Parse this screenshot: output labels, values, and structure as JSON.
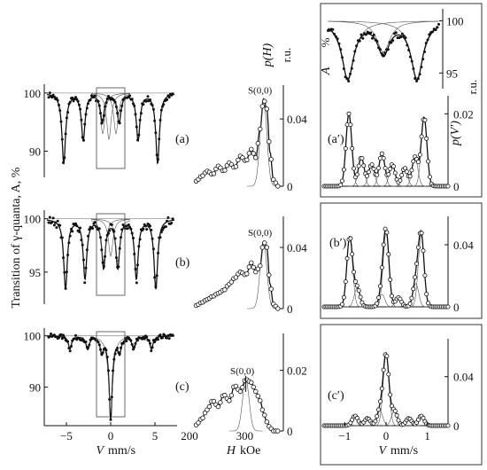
{
  "labels": {
    "y_left": "Transition of γ-quanta, A, %",
    "x_spectra_unit": "mm/s",
    "x_spectra_var": "V",
    "x_field_var": "H",
    "x_field_unit": "kOe",
    "y_field_var": "p(H)",
    "y_field_unit": "r.u.",
    "y_inset_top_var": "A",
    "y_inset_top_unit": "%",
    "y_inset_bottom_var": "p(V′)",
    "y_inset_bottom_unit": "r.u.",
    "s00": "S(0,0)"
  },
  "chart_data": [
    {
      "id": "a",
      "panel_label": "(a)",
      "type": "scatter",
      "xlabel": "V, mm/s",
      "ylabel": "A, %",
      "xlim": [
        -7.5,
        7.5
      ],
      "ylim": [
        85.5,
        101.5
      ],
      "yticks": [
        "90",
        "100"
      ],
      "baseline": 100,
      "peaks": [
        {
          "v": -5.3,
          "depth": 12
        },
        {
          "v": -3.1,
          "depth": 8
        },
        {
          "v": -0.95,
          "depth": 5
        },
        {
          "v": 0.95,
          "depth": 5
        },
        {
          "v": 3.1,
          "depth": 8
        },
        {
          "v": 5.3,
          "depth": 12
        }
      ],
      "components": [
        {
          "v": -0.9,
          "depth": 7
        },
        {
          "v": -0.2,
          "depth": 8
        },
        {
          "v": 0.6,
          "depth": 7
        }
      ],
      "selection_window": [
        -1.6,
        1.6
      ]
    },
    {
      "id": "b",
      "panel_label": "(b)",
      "type": "scatter",
      "xlabel": "V, mm/s",
      "ylabel": "A, %",
      "xlim": [
        -7.5,
        7.5
      ],
      "ylim": [
        92,
        100.8
      ],
      "yticks": [
        "95",
        "100"
      ],
      "baseline": 100,
      "peaks": [
        {
          "v": -5.1,
          "depth": 6.5
        },
        {
          "v": -2.9,
          "depth": 5.5
        },
        {
          "v": -0.8,
          "depth": 4.5
        },
        {
          "v": 0.8,
          "depth": 4.5
        },
        {
          "v": 2.9,
          "depth": 5.5
        },
        {
          "v": 5.1,
          "depth": 6.5
        }
      ],
      "components": [
        {
          "v": -0.8,
          "depth": 4
        },
        {
          "v": 0.0,
          "depth": 3.5
        },
        {
          "v": 0.8,
          "depth": 4
        }
      ],
      "selection_window": [
        -1.6,
        1.6
      ]
    },
    {
      "id": "c",
      "panel_label": "(c)",
      "type": "scatter",
      "xlabel": "V, mm/s",
      "ylabel": "A, %",
      "xlim": [
        -7.5,
        7.5
      ],
      "ylim": [
        82.5,
        101.5
      ],
      "xticks": [
        "−5",
        "0",
        "5"
      ],
      "yticks": [
        "90",
        "100"
      ],
      "baseline": 100,
      "peaks": [
        {
          "v": -4.6,
          "depth": 2.5
        },
        {
          "v": -2.6,
          "depth": 2.5
        },
        {
          "v": -1.0,
          "depth": 3
        },
        {
          "v": 0.0,
          "depth": 16
        },
        {
          "v": 1.0,
          "depth": 3
        },
        {
          "v": 2.6,
          "depth": 2.5
        },
        {
          "v": 4.6,
          "depth": 2.5
        }
      ],
      "components": [
        {
          "v": 0.0,
          "depth": 15
        }
      ],
      "selection_window": [
        -1.6,
        1.6
      ]
    },
    {
      "id": "a_H",
      "type": "line",
      "xlabel": "H, kOe",
      "ylabel": "p(H), r.u.",
      "xlim": [
        200,
        370
      ],
      "ylim": [
        0,
        0.058
      ],
      "yticks": [
        "0",
        "0.04"
      ],
      "annotation": "S(0,0)",
      "H": [
        212,
        222,
        232,
        242,
        252,
        262,
        272,
        282,
        292,
        302,
        312,
        320,
        328,
        334,
        340,
        346,
        352,
        360
      ],
      "p": [
        0.003,
        0.006,
        0.009,
        0.007,
        0.012,
        0.009,
        0.014,
        0.011,
        0.018,
        0.015,
        0.022,
        0.017,
        0.034,
        0.052,
        0.046,
        0.02,
        0.004,
        0.0
      ]
    },
    {
      "id": "b_H",
      "type": "line",
      "xlabel": "H, kOe",
      "ylabel": "p(H), r.u.",
      "xlim": [
        200,
        370
      ],
      "ylim": [
        0,
        0.058
      ],
      "yticks": [
        "0",
        "0.04"
      ],
      "annotation": "S(0,0)",
      "H": [
        212,
        222,
        232,
        242,
        252,
        262,
        272,
        282,
        292,
        302,
        312,
        320,
        328,
        334,
        340,
        346,
        352,
        360
      ],
      "p": [
        0.002,
        0.004,
        0.006,
        0.008,
        0.01,
        0.012,
        0.016,
        0.02,
        0.024,
        0.022,
        0.03,
        0.024,
        0.028,
        0.044,
        0.04,
        0.016,
        0.003,
        0.0
      ]
    },
    {
      "id": "c_H",
      "type": "line",
      "xlabel": "H, kOe",
      "ylabel": "p(H), r.u.",
      "xlim": [
        200,
        370
      ],
      "ylim": [
        0,
        0.031
      ],
      "xticks": [
        "200",
        "300"
      ],
      "yticks": [
        "0",
        "0.02"
      ],
      "annotation": "S(0,0)",
      "H": [
        212,
        222,
        232,
        242,
        252,
        262,
        272,
        282,
        292,
        302,
        312,
        320,
        328,
        334,
        340,
        346,
        352,
        360
      ],
      "p": [
        0.002,
        0.004,
        0.007,
        0.01,
        0.008,
        0.012,
        0.01,
        0.015,
        0.013,
        0.017,
        0.016,
        0.013,
        0.01,
        0.006,
        0.003,
        0.001,
        0.0,
        0.0
      ]
    },
    {
      "id": "a_inset",
      "panel_label": "(a′)",
      "type": "scatter",
      "xlabel": "V, mm/s",
      "ylabel": "A, %",
      "xlim": [
        -1.5,
        1.5
      ],
      "ylim": [
        93.5,
        100.8
      ],
      "yticks": [
        "95",
        "100"
      ],
      "baseline": 100,
      "peaks": [
        {
          "v": -0.9,
          "depth": 5.5
        },
        {
          "v": 0.0,
          "depth": 3
        },
        {
          "v": 0.85,
          "depth": 5.5
        }
      ]
    },
    {
      "id": "a_prime",
      "type": "line",
      "xlabel": "V, mm/s",
      "ylabel": "p(V′), r.u.",
      "xlim": [
        -1.5,
        1.5
      ],
      "ylim": [
        0,
        0.024
      ],
      "yticks": [
        "0",
        "0.02"
      ],
      "components": [
        {
          "v": -0.9,
          "h": 0.02
        },
        {
          "v": -0.6,
          "h": 0.008
        },
        {
          "v": -0.35,
          "h": 0.006
        },
        {
          "v": -0.1,
          "h": 0.009
        },
        {
          "v": 0.15,
          "h": 0.006
        },
        {
          "v": 0.45,
          "h": 0.005
        },
        {
          "v": 0.7,
          "h": 0.008
        },
        {
          "v": 0.92,
          "h": 0.019
        }
      ]
    },
    {
      "id": "b_prime",
      "panel_label": "(b′)",
      "type": "line",
      "xlabel": "V, mm/s",
      "ylabel": "p(V′), r.u.",
      "xlim": [
        -1.5,
        1.5
      ],
      "ylim": [
        0,
        0.056
      ],
      "yticks": [
        "0",
        "0.04"
      ],
      "components": [
        {
          "v": -0.88,
          "h": 0.045
        },
        {
          "v": -0.7,
          "h": 0.012
        },
        {
          "v": -0.1,
          "h": 0.008
        },
        {
          "v": 0.0,
          "h": 0.048
        },
        {
          "v": 0.3,
          "h": 0.006
        },
        {
          "v": 0.72,
          "h": 0.015
        },
        {
          "v": 0.85,
          "h": 0.046
        }
      ]
    },
    {
      "id": "c_prime",
      "panel_label": "(c′)",
      "type": "line",
      "xlabel": "V, mm/s",
      "ylabel": "p(V′), r.u.",
      "xlim": [
        -1.5,
        1.5
      ],
      "ylim": [
        0,
        0.068
      ],
      "xticks": [
        "−1",
        "0",
        "1"
      ],
      "yticks": [
        "0",
        "0.04"
      ],
      "components": [
        {
          "v": -0.75,
          "h": 0.008
        },
        {
          "v": -0.45,
          "h": 0.006
        },
        {
          "v": -0.15,
          "h": 0.012
        },
        {
          "v": 0.0,
          "h": 0.058
        },
        {
          "v": 0.2,
          "h": 0.012
        },
        {
          "v": 0.55,
          "h": 0.006
        },
        {
          "v": 0.85,
          "h": 0.008
        }
      ]
    }
  ]
}
